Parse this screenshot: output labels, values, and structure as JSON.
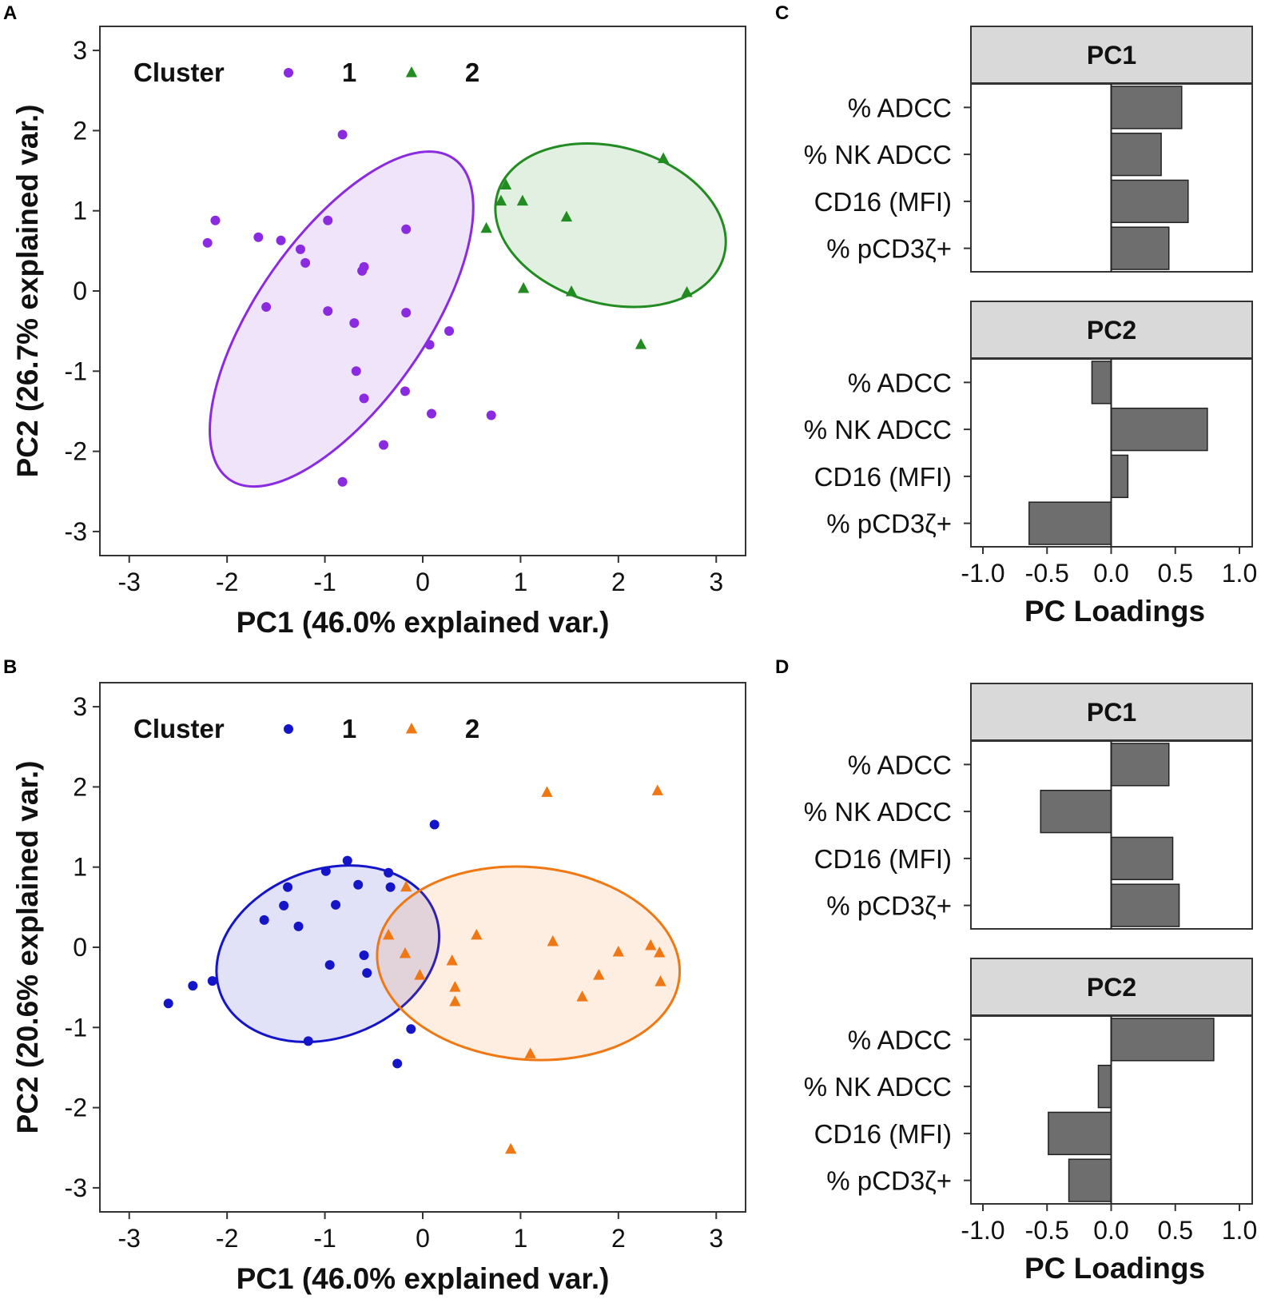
{
  "figure": {
    "panel_letters": [
      "A",
      "B",
      "C",
      "D"
    ]
  },
  "chart_data": [
    {
      "id": "A",
      "type": "scatter",
      "xlabel": "PC1 (46.0% explained var.)",
      "ylabel": "PC2 (26.7% explained var.)",
      "xlim": [
        -3.3,
        3.3
      ],
      "ylim": [
        -3.3,
        3.3
      ],
      "xticks": [
        -3,
        -2,
        -1,
        0,
        1,
        2,
        3
      ],
      "yticks": [
        -3,
        -2,
        -1,
        0,
        1,
        2,
        3
      ],
      "legend": {
        "title": "Cluster",
        "position": "top-left-inside"
      },
      "series": [
        {
          "name": "1",
          "marker": "circle",
          "color": "#8a2be2",
          "ellipse": {
            "cx": -0.83,
            "cy": -0.35,
            "rx": 2.0,
            "ry": 1.05,
            "angle_deg": 55
          },
          "points": [
            [
              -2.2,
              0.6
            ],
            [
              -2.12,
              0.88
            ],
            [
              -1.68,
              0.67
            ],
            [
              -1.6,
              -0.2
            ],
            [
              -1.45,
              0.63
            ],
            [
              -1.25,
              0.52
            ],
            [
              -1.2,
              0.35
            ],
            [
              -0.97,
              0.88
            ],
            [
              -0.97,
              -0.25
            ],
            [
              -0.82,
              1.95
            ],
            [
              -0.82,
              -2.38
            ],
            [
              -0.7,
              -0.4
            ],
            [
              -0.68,
              -1.0
            ],
            [
              -0.62,
              0.25
            ],
            [
              -0.6,
              0.3
            ],
            [
              -0.6,
              -1.34
            ],
            [
              -0.4,
              -1.92
            ],
            [
              -0.17,
              0.77
            ],
            [
              -0.17,
              -0.27
            ],
            [
              -0.18,
              -1.25
            ],
            [
              0.07,
              -0.67
            ],
            [
              0.09,
              -1.53
            ],
            [
              0.27,
              -0.5
            ],
            [
              0.7,
              -1.55
            ]
          ]
        },
        {
          "name": "2",
          "marker": "triangle",
          "color": "#228b22",
          "ellipse": {
            "cx": 1.92,
            "cy": 0.82,
            "rx": 1.2,
            "ry": 0.98,
            "angle_deg": -15
          },
          "points": [
            [
              0.65,
              0.78
            ],
            [
              0.8,
              1.12
            ],
            [
              0.85,
              1.32
            ],
            [
              1.02,
              1.12
            ],
            [
              1.03,
              0.03
            ],
            [
              1.47,
              0.92
            ],
            [
              1.52,
              -0.01
            ],
            [
              2.23,
              -0.67
            ],
            [
              2.46,
              1.65
            ],
            [
              2.7,
              -0.02
            ]
          ]
        }
      ]
    },
    {
      "id": "B",
      "type": "scatter",
      "xlabel": "PC1 (46.0% explained var.)",
      "ylabel": "PC2 (20.6% explained var.)",
      "xlim": [
        -3.3,
        3.3
      ],
      "ylim": [
        -3.3,
        3.3
      ],
      "xticks": [
        -3,
        -2,
        -1,
        0,
        1,
        2,
        3
      ],
      "yticks": [
        -3,
        -2,
        -1,
        0,
        1,
        2,
        3
      ],
      "legend": {
        "title": "Cluster",
        "position": "top-left-inside"
      },
      "series": [
        {
          "name": "1",
          "marker": "circle",
          "color": "#1414c8",
          "ellipse": {
            "cx": -0.97,
            "cy": -0.08,
            "rx": 1.17,
            "ry": 1.05,
            "angle_deg": 20
          },
          "points": [
            [
              -2.6,
              -0.7
            ],
            [
              -2.35,
              -0.48
            ],
            [
              -2.15,
              -0.42
            ],
            [
              -1.62,
              0.34
            ],
            [
              -1.42,
              0.52
            ],
            [
              -1.38,
              0.75
            ],
            [
              -1.27,
              0.26
            ],
            [
              -1.17,
              -1.17
            ],
            [
              -0.99,
              0.95
            ],
            [
              -0.95,
              -0.22
            ],
            [
              -0.89,
              0.53
            ],
            [
              -0.77,
              1.08
            ],
            [
              -0.66,
              0.78
            ],
            [
              -0.6,
              -0.1
            ],
            [
              -0.57,
              -0.32
            ],
            [
              -0.35,
              0.93
            ],
            [
              -0.33,
              0.75
            ],
            [
              -0.26,
              -1.45
            ],
            [
              -0.12,
              -1.02
            ],
            [
              0.12,
              1.53
            ]
          ]
        },
        {
          "name": "2",
          "marker": "triangle",
          "color": "#f07814",
          "ellipse": {
            "cx": 1.08,
            "cy": -0.2,
            "rx": 1.55,
            "ry": 1.2,
            "angle_deg": -5
          },
          "points": [
            [
              -0.35,
              0.15
            ],
            [
              -0.18,
              -0.08
            ],
            [
              -0.17,
              0.75
            ],
            [
              -0.03,
              -0.35
            ],
            [
              0.3,
              -0.17
            ],
            [
              0.33,
              -0.5
            ],
            [
              0.33,
              -0.68
            ],
            [
              0.55,
              0.15
            ],
            [
              0.9,
              -2.52
            ],
            [
              1.1,
              -1.33
            ],
            [
              1.27,
              1.93
            ],
            [
              1.33,
              0.07
            ],
            [
              1.63,
              -0.62
            ],
            [
              1.8,
              -0.35
            ],
            [
              2.0,
              -0.06
            ],
            [
              2.33,
              0.02
            ],
            [
              2.4,
              1.95
            ],
            [
              2.42,
              -0.07
            ],
            [
              2.43,
              -0.43
            ]
          ]
        }
      ]
    },
    {
      "id": "C",
      "type": "bar",
      "orientation": "horizontal",
      "xlabel": "PC Loadings",
      "xlim": [
        -1.0,
        1.0
      ],
      "xticks": [
        "-1.0",
        "-0.5",
        "0.0",
        "0.5",
        "1.0"
      ],
      "categories": [
        "% ADCC",
        "% NK ADCC",
        "CD16 (MFI)",
        "% pCD3ζ+"
      ],
      "facets": [
        {
          "strip": "PC1",
          "values": [
            0.55,
            0.39,
            0.6,
            0.45
          ]
        },
        {
          "strip": "PC2",
          "values": [
            -0.15,
            0.75,
            0.13,
            -0.64
          ]
        }
      ]
    },
    {
      "id": "D",
      "type": "bar",
      "orientation": "horizontal",
      "xlabel": "PC Loadings",
      "xlim": [
        -1.0,
        1.0
      ],
      "xticks": [
        "-1.0",
        "-0.5",
        "0.0",
        "0.5",
        "1.0"
      ],
      "categories": [
        "% ADCC",
        "% NK ADCC",
        "CD16 (MFI)",
        "% pCD3ζ+"
      ],
      "facets": [
        {
          "strip": "PC1",
          "values": [
            0.45,
            -0.55,
            0.48,
            0.53
          ]
        },
        {
          "strip": "PC2",
          "values": [
            0.8,
            -0.1,
            -0.49,
            -0.33
          ]
        }
      ]
    }
  ]
}
